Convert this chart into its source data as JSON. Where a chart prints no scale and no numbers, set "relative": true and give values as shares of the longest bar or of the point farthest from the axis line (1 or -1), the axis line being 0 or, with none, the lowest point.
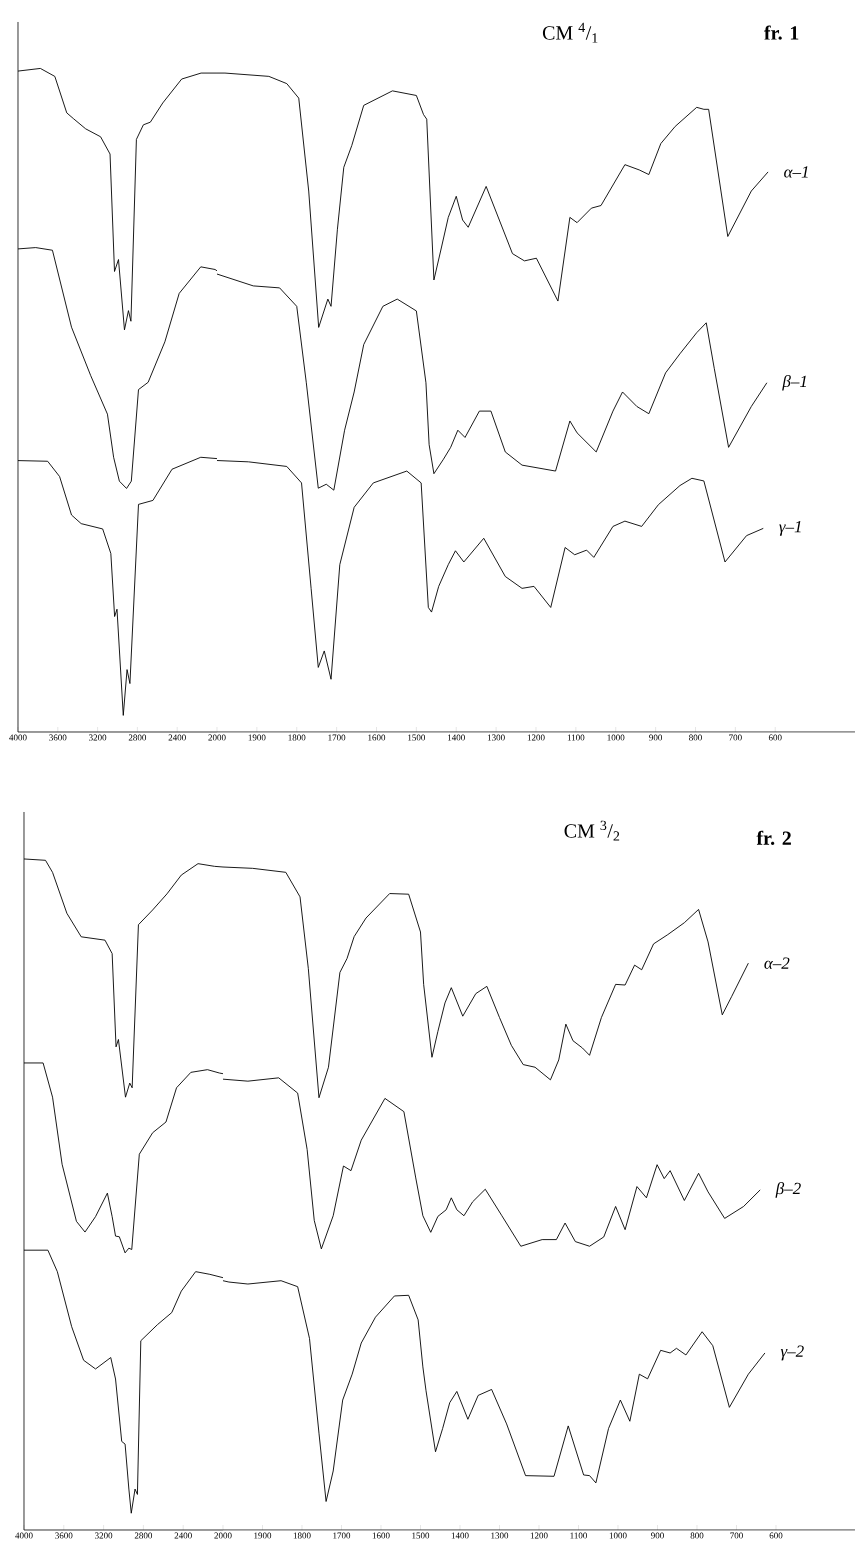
{
  "chart_data": [
    {
      "type": "line",
      "relative": true,
      "xlim": [
        4000,
        2000
      ],
      "xticks": [
        4000,
        3600,
        3200,
        2800,
        2400
      ],
      "series": [
        {
          "color": "#000000",
          "x": [
            4000,
            3775,
            3630,
            3510,
            3440,
            3320,
            3170,
            3075,
            3030,
            2990,
            2930,
            2890,
            2865,
            2810,
            2740,
            2670,
            2545,
            2355,
            2160,
            2000
          ],
          "values": [
            0.996,
            1.0,
            0.988,
            0.933,
            0.924,
            0.909,
            0.897,
            0.871,
            0.694,
            0.712,
            0.606,
            0.635,
            0.619,
            0.893,
            0.915,
            0.919,
            0.948,
            0.984,
            0.993,
            0.993
          ]
        },
        {
          "color": "#000000",
          "x": [
            4000,
            3822,
            3654,
            3462,
            3269,
            3101,
            3039,
            2981,
            2909,
            2861,
            2789,
            2692,
            2524,
            2380,
            2163,
            2019,
            2000
          ],
          "values": [
            0.728,
            0.73,
            0.726,
            0.61,
            0.537,
            0.479,
            0.414,
            0.378,
            0.367,
            0.378,
            0.516,
            0.527,
            0.588,
            0.661,
            0.701,
            0.697,
            0.695
          ]
        },
        {
          "color": "#000000",
          "x": [
            4000,
            3702,
            3582,
            3462,
            3365,
            3149,
            3067,
            3029,
            3005,
            2942,
            2904,
            2875,
            2789,
            2644,
            2452,
            2163,
            2000
          ],
          "values": [
            0.409,
            0.408,
            0.385,
            0.327,
            0.314,
            0.306,
            0.269,
            0.174,
            0.185,
            0.025,
            0.094,
            0.073,
            0.343,
            0.349,
            0.396,
            0.414,
            0.412
          ]
        }
      ]
    },
    {
      "type": "line",
      "title": "CM $^{4}$/$_{1}$",
      "subtitle": "fr. 1",
      "relative": true,
      "xlim": [
        2000,
        400
      ],
      "xticks": [
        2000,
        1900,
        1800,
        1700,
        1600,
        1500,
        1400,
        1300,
        1200,
        1100,
        1000,
        900,
        800,
        700,
        600
      ],
      "series": [
        {
          "name": "α–1",
          "color": "#000000",
          "x": [
            2000,
            1980,
            1870,
            1825,
            1795,
            1770,
            1745,
            1722,
            1714,
            1698,
            1682,
            1662,
            1632,
            1560,
            1500,
            1482,
            1474,
            1456,
            1438,
            1420,
            1400,
            1384,
            1370,
            1325,
            1259,
            1229,
            1199,
            1145,
            1115,
            1097,
            1061,
            1037,
            977,
            941,
            917,
            887,
            851,
            797,
            779,
            767,
            719,
            660,
            618
          ],
          "values": [
            1.0,
            1.0,
            0.995,
            0.984,
            0.962,
            0.821,
            0.614,
            0.657,
            0.646,
            0.763,
            0.857,
            0.89,
            0.951,
            0.973,
            0.966,
            0.937,
            0.93,
            0.686,
            0.733,
            0.781,
            0.813,
            0.777,
            0.766,
            0.828,
            0.726,
            0.715,
            0.719,
            0.654,
            0.781,
            0.773,
            0.795,
            0.799,
            0.861,
            0.853,
            0.846,
            0.893,
            0.919,
            0.948,
            0.945,
            0.945,
            0.752,
            0.821,
            0.85
          ]
        },
        {
          "name": "β–1",
          "color": "#000000",
          "x": [
            2000,
            1909,
            1843,
            1800,
            1776,
            1746,
            1726,
            1707,
            1680,
            1656,
            1632,
            1584,
            1548,
            1500,
            1476,
            1468,
            1456,
            1432,
            1414,
            1396,
            1378,
            1342,
            1313,
            1277,
            1235,
            1151,
            1115,
            1097,
            1049,
            1007,
            983,
            947,
            917,
            875,
            839,
            797,
            773,
            753,
            717,
            660,
            621
          ],
          "values": [
            0.695,
            0.677,
            0.674,
            0.646,
            0.53,
            0.37,
            0.376,
            0.367,
            0.458,
            0.516,
            0.588,
            0.646,
            0.657,
            0.639,
            0.53,
            0.436,
            0.392,
            0.414,
            0.432,
            0.458,
            0.447,
            0.487,
            0.487,
            0.425,
            0.405,
            0.396,
            0.472,
            0.454,
            0.425,
            0.487,
            0.516,
            0.494,
            0.483,
            0.545,
            0.574,
            0.606,
            0.621,
            0.552,
            0.432,
            0.494,
            0.53
          ]
        },
        {
          "name": "γ–1",
          "color": "#000000",
          "x": [
            2000,
            1921,
            1825,
            1788,
            1764,
            1746,
            1731,
            1714,
            1692,
            1656,
            1608,
            1524,
            1488,
            1470,
            1462,
            1444,
            1420,
            1402,
            1381,
            1331,
            1277,
            1235,
            1205,
            1163,
            1127,
            1103,
            1073,
            1055,
            1007,
            977,
            935,
            893,
            839,
            809,
            779,
            726,
            672,
            630
          ],
          "values": [
            0.412,
            0.41,
            0.403,
            0.378,
            0.218,
            0.098,
            0.123,
            0.08,
            0.254,
            0.341,
            0.378,
            0.396,
            0.378,
            0.189,
            0.182,
            0.221,
            0.254,
            0.275,
            0.258,
            0.294,
            0.236,
            0.218,
            0.221,
            0.189,
            0.28,
            0.269,
            0.276,
            0.265,
            0.312,
            0.32,
            0.312,
            0.345,
            0.374,
            0.385,
            0.381,
            0.258,
            0.298,
            0.309
          ]
        }
      ]
    },
    {
      "type": "line",
      "relative": true,
      "xlim": [
        4000,
        2000
      ],
      "xticks": [
        4000,
        3600,
        3200,
        2800,
        2400
      ],
      "series": [
        {
          "color": "#000000",
          "x": [
            4000,
            3784,
            3713,
            3569,
            3425,
            3186,
            3114,
            3075,
            3051,
            2980,
            2937,
            2913,
            2850,
            2707,
            2563,
            2419,
            2251,
            2084,
            2000
          ],
          "values": [
            1.0,
            0.998,
            0.98,
            0.919,
            0.884,
            0.879,
            0.859,
            0.72,
            0.731,
            0.645,
            0.666,
            0.659,
            0.902,
            0.924,
            0.948,
            0.976,
            0.993,
            0.989,
            0.988
          ]
        },
        {
          "color": "#000000",
          "x": [
            4000,
            3808,
            3713,
            3617,
            3473,
            3387,
            3281,
            3162,
            3114,
            3080,
            3042,
            2984,
            2946,
            2917,
            2841,
            2707,
            2573,
            2467,
            2323,
            2156,
            2036,
            2000
          ],
          "values": [
            0.696,
            0.696,
            0.645,
            0.545,
            0.46,
            0.444,
            0.467,
            0.502,
            0.467,
            0.438,
            0.437,
            0.413,
            0.42,
            0.418,
            0.56,
            0.592,
            0.608,
            0.659,
            0.682,
            0.686,
            0.681,
            0.68
          ]
        },
        {
          "color": "#000000",
          "x": [
            4000,
            3760,
            3665,
            3521,
            3401,
            3281,
            3128,
            3080,
            3018,
            2984,
            2946,
            2922,
            2884,
            2860,
            2826,
            2659,
            2515,
            2419,
            2275,
            2132,
            2000
          ],
          "values": [
            0.417,
            0.417,
            0.385,
            0.303,
            0.253,
            0.24,
            0.257,
            0.225,
            0.132,
            0.128,
            0.061,
            0.025,
            0.061,
            0.053,
            0.282,
            0.306,
            0.324,
            0.356,
            0.385,
            0.381,
            0.376
          ]
        }
      ]
    },
    {
      "type": "line",
      "title": "CM $^{3}$/$_{2}$",
      "subtitle": "fr. 2",
      "relative": true,
      "xlim": [
        2000,
        400
      ],
      "xticks": [
        2000,
        1900,
        1800,
        1700,
        1600,
        1500,
        1400,
        1300,
        1200,
        1100,
        1000,
        900,
        800,
        700,
        600
      ],
      "series": [
        {
          "name": "α–2",
          "color": "#000000",
          "x": [
            2000,
            1925,
            1841,
            1805,
            1784,
            1757,
            1733,
            1704,
            1686,
            1668,
            1638,
            1578,
            1530,
            1500,
            1492,
            1471,
            1456,
            1438,
            1422,
            1393,
            1360,
            1332,
            1300,
            1270,
            1240,
            1210,
            1171,
            1150,
            1132,
            1114,
            1090,
            1072,
            1042,
            1006,
            982,
            958,
            940,
            910,
            874,
            832,
            796,
            772,
            736,
            712,
            670
          ],
          "values": [
            1.0,
            0.998,
            0.992,
            0.955,
            0.847,
            0.652,
            0.698,
            0.841,
            0.862,
            0.895,
            0.923,
            0.96,
            0.959,
            0.902,
            0.823,
            0.713,
            0.752,
            0.795,
            0.818,
            0.775,
            0.809,
            0.82,
            0.773,
            0.731,
            0.702,
            0.698,
            0.679,
            0.709,
            0.763,
            0.738,
            0.727,
            0.716,
            0.773,
            0.823,
            0.822,
            0.852,
            0.845,
            0.884,
            0.898,
            0.916,
            0.936,
            0.887,
            0.777,
            0.805,
            0.855
          ]
        },
        {
          "name": "β–2",
          "color": "#000000",
          "x": [
            2000,
            1937,
            1859,
            1811,
            1787,
            1769,
            1751,
            1721,
            1695,
            1676,
            1650,
            1590,
            1542,
            1512,
            1494,
            1474,
            1456,
            1435,
            1422,
            1408,
            1390,
            1368,
            1336,
            1294,
            1246,
            1192,
            1156,
            1134,
            1108,
            1072,
            1036,
            1006,
            982,
            952,
            928,
            901,
            883,
            868,
            832,
            796,
            772,
            730,
            682,
            640
          ],
          "values": [
            0.68,
            0.677,
            0.682,
            0.659,
            0.574,
            0.467,
            0.424,
            0.474,
            0.549,
            0.542,
            0.588,
            0.651,
            0.631,
            0.531,
            0.474,
            0.449,
            0.473,
            0.483,
            0.501,
            0.483,
            0.474,
            0.495,
            0.514,
            0.474,
            0.428,
            0.438,
            0.438,
            0.463,
            0.435,
            0.428,
            0.442,
            0.488,
            0.453,
            0.518,
            0.501,
            0.551,
            0.53,
            0.542,
            0.497,
            0.538,
            0.51,
            0.47,
            0.488,
            0.513
          ]
        },
        {
          "name": "γ–2",
          "color": "#000000",
          "x": [
            2000,
            1985,
            1937,
            1853,
            1811,
            1781,
            1757,
            1739,
            1721,
            1697,
            1673,
            1650,
            1614,
            1566,
            1530,
            1506,
            1494,
            1486,
            1462,
            1444,
            1426,
            1408,
            1380,
            1354,
            1320,
            1282,
            1234,
            1162,
            1126,
            1087,
            1072,
            1056,
            1024,
            994,
            970,
            946,
            925,
            892,
            868,
            852,
            828,
            787,
            760,
            718,
            670,
            628
          ],
          "values": [
            0.376,
            0.374,
            0.371,
            0.376,
            0.367,
            0.289,
            0.146,
            0.043,
            0.089,
            0.196,
            0.235,
            0.282,
            0.321,
            0.353,
            0.354,
            0.317,
            0.246,
            0.21,
            0.118,
            0.153,
            0.192,
            0.209,
            0.167,
            0.203,
            0.212,
            0.16,
            0.082,
            0.081,
            0.157,
            0.083,
            0.082,
            0.071,
            0.153,
            0.196,
            0.164,
            0.235,
            0.228,
            0.271,
            0.267,
            0.274,
            0.264,
            0.299,
            0.278,
            0.185,
            0.235,
            0.267
          ]
        }
      ]
    }
  ]
}
